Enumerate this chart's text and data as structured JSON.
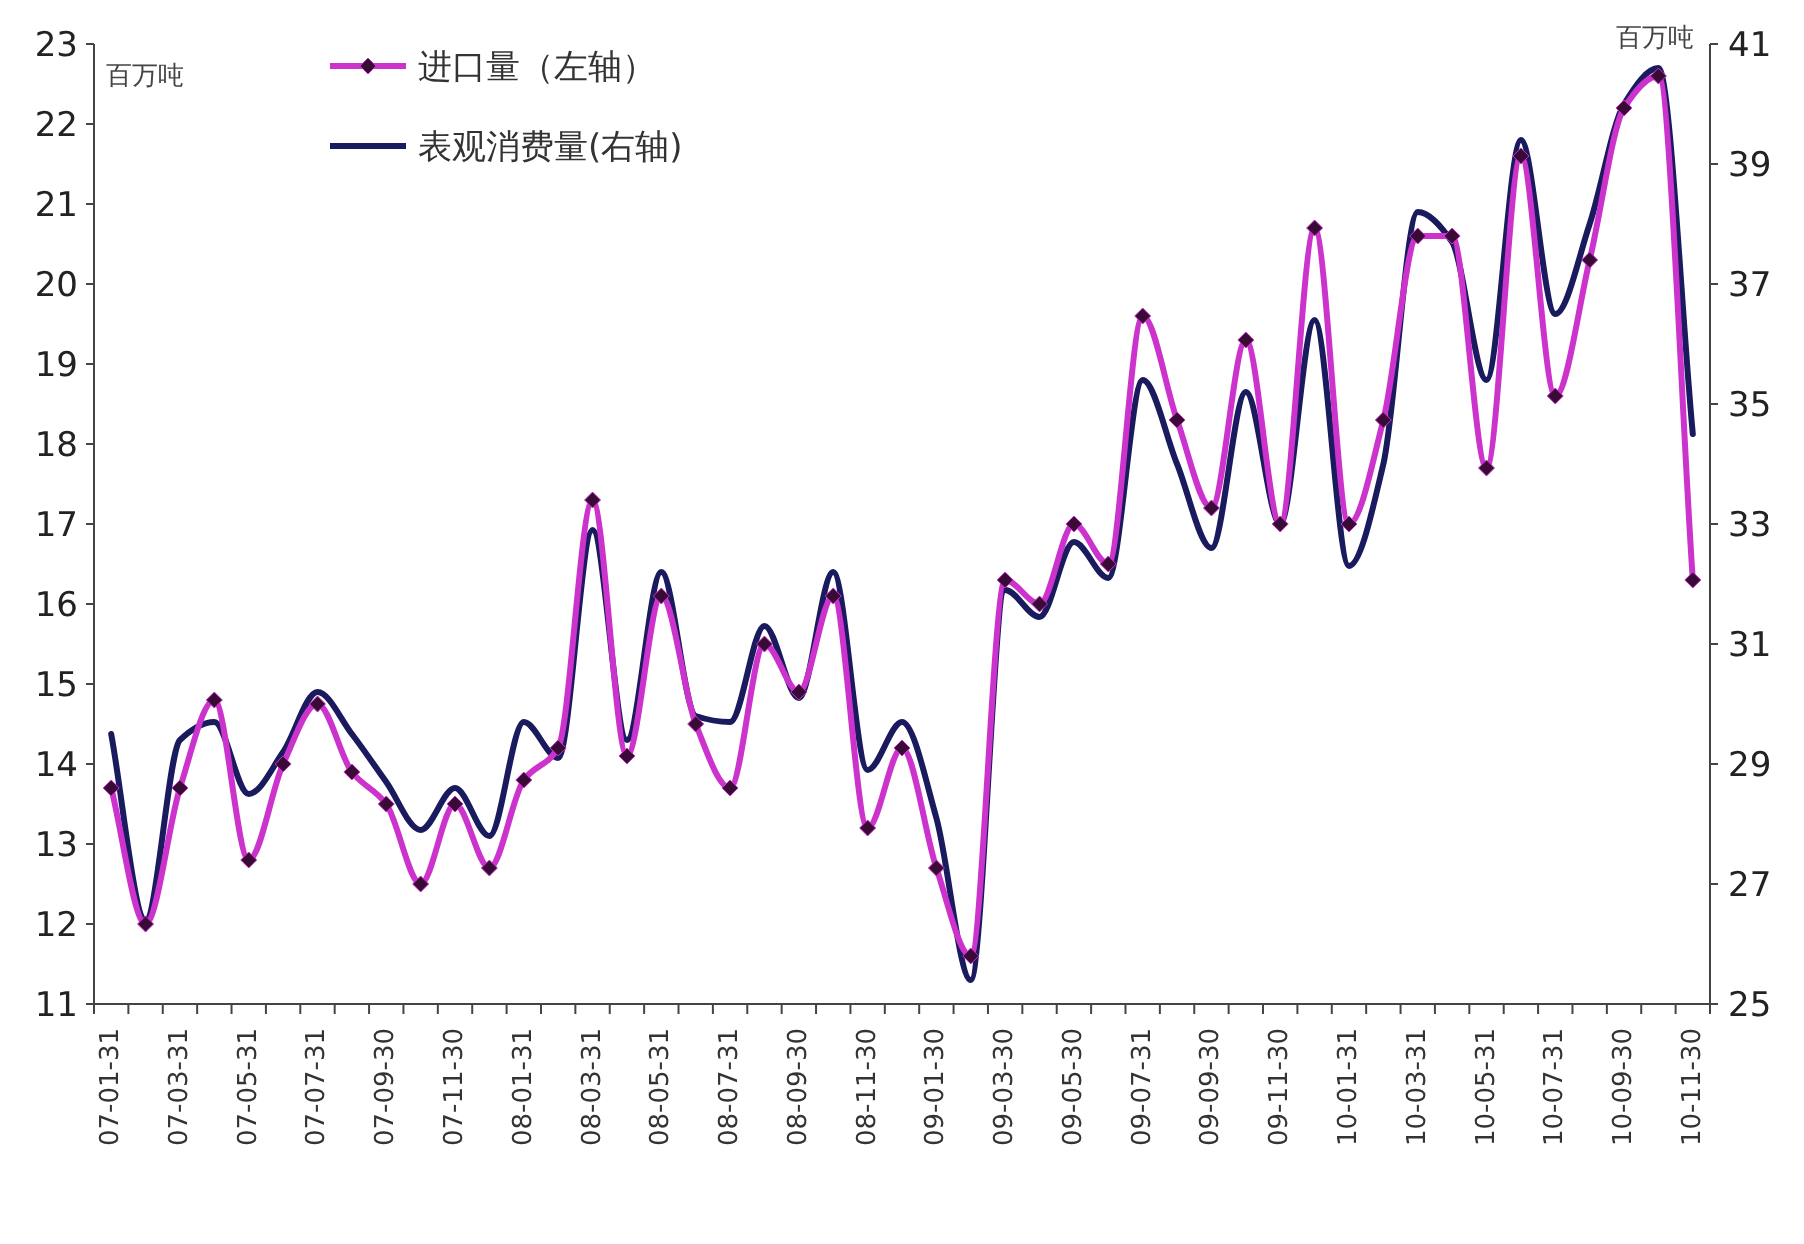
{
  "chart_data": {
    "type": "line",
    "ylabel": "百万吨",
    "y2label": "百万吨",
    "categories": [
      "07-01-31",
      null,
      "07-03-31",
      null,
      "07-05-31",
      null,
      "07-07-31",
      null,
      "07-09-30",
      null,
      "07-11-30",
      null,
      "08-01-31",
      null,
      "08-03-31",
      null,
      "08-05-31",
      null,
      "08-07-31",
      null,
      "08-09-30",
      null,
      "08-11-30",
      null,
      "09-01-30",
      null,
      "09-03-30",
      null,
      "09-05-30",
      null,
      "09-07-31",
      null,
      "09-09-30",
      null,
      "09-11-30",
      null,
      "10-01-31",
      null,
      "10-03-31",
      null,
      "10-05-31",
      null,
      "10-07-31",
      null,
      "10-09-30",
      null,
      "10-11-30"
    ],
    "series": [
      {
        "name": "进口量（左轴）",
        "color": "#cc33cc",
        "marker": "diamond",
        "values": [
          13.7,
          12.0,
          13.7,
          14.8,
          12.8,
          14.0,
          14.75,
          13.9,
          13.5,
          12.5,
          13.5,
          12.7,
          13.8,
          14.2,
          17.3,
          14.1,
          16.1,
          14.5,
          13.7,
          15.5,
          14.9,
          16.1,
          13.2,
          14.2,
          12.7,
          11.6,
          16.3,
          16.0,
          17.0,
          16.5,
          19.6,
          18.3,
          17.2,
          19.3,
          17.0,
          20.7,
          17.0,
          18.3,
          20.6,
          20.6,
          17.7,
          21.6,
          18.6,
          20.3,
          22.2,
          22.6,
          16.3
        ]
      },
      {
        "name": "表观消费量(右轴)",
        "color": "#1a1a5e",
        "axis": "y2",
        "marker": "none",
        "values": [
          29.5,
          26.4,
          29.4,
          29.7,
          28.5,
          29.2,
          30.2,
          29.5,
          28.7,
          27.9,
          28.6,
          27.8,
          29.7,
          29.1,
          32.9,
          29.4,
          32.2,
          29.8,
          29.7,
          31.3,
          30.1,
          32.2,
          28.9,
          29.7,
          28.1,
          25.4,
          31.9,
          31.45,
          32.7,
          32.1,
          35.4,
          34.0,
          32.6,
          35.2,
          33.0,
          36.4,
          32.3,
          34.0,
          38.2,
          37.7,
          35.4,
          39.4,
          36.5,
          38.0,
          40.0,
          40.6,
          34.5
        ]
      }
    ],
    "ylim": [
      11,
      23
    ],
    "yticks": [
      11,
      12,
      13,
      14,
      15,
      16,
      17,
      18,
      19,
      20,
      21,
      22,
      23
    ],
    "y2lim": [
      25,
      41
    ],
    "y2ticks": [
      25,
      27,
      29,
      31,
      33,
      35,
      37,
      39,
      41
    ],
    "legend": "top left",
    "grid": false,
    "line_style": "solid"
  }
}
